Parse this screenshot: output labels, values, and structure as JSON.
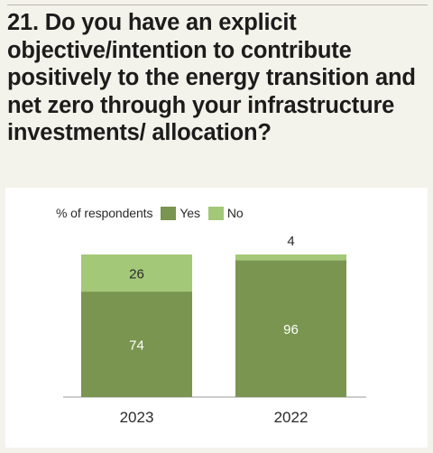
{
  "question": {
    "title": "21. Do you have an explicit objective/intention to contribute positively to the energy transition and net zero through your infrastructure investments/ allocation?"
  },
  "chart_data": {
    "type": "bar",
    "stacked": true,
    "categories": [
      "2023",
      "2022"
    ],
    "series": [
      {
        "name": "Yes",
        "values": [
          74,
          96
        ],
        "color": "#7a9550"
      },
      {
        "name": "No",
        "values": [
          26,
          4
        ],
        "color": "#a3c878"
      }
    ],
    "legend_title": "% of respondents",
    "legend_position": "top-left",
    "ylim": [
      0,
      100
    ],
    "grid": false,
    "xlabel": "",
    "ylabel": ""
  }
}
